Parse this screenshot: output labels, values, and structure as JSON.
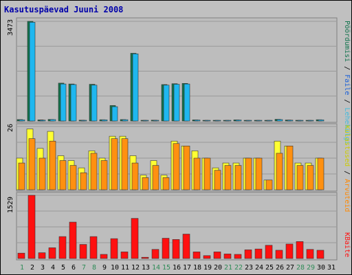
{
  "chart_data": [
    {
      "type": "bar",
      "title": "Kasutuspäevad Juuni 2008",
      "x": [
        "1",
        "2",
        "3",
        "4",
        "5",
        "6",
        "7",
        "8",
        "9",
        "10",
        "11",
        "12",
        "13",
        "14",
        "15",
        "16",
        "17",
        "18",
        "19",
        "20",
        "21",
        "22",
        "23",
        "24",
        "25",
        "26",
        "27",
        "28",
        "29",
        "30",
        "31"
      ],
      "weekend_days": [
        "1",
        "7",
        "8",
        "14",
        "15",
        "21",
        "22",
        "28",
        "29"
      ],
      "y_tick": "3473",
      "ylim": [
        0,
        3473
      ],
      "grid": true,
      "legend_placement": "right",
      "series": [
        {
          "name": "Pöördumisi",
          "color": "#11734d",
          "values": [
            50,
            3473,
            40,
            55,
            1320,
            1290,
            30,
            1280,
            45,
            540,
            50,
            2360,
            25,
            30,
            1270,
            1300,
            1310,
            40,
            20,
            20,
            15,
            40,
            20,
            25,
            20,
            60,
            35,
            25,
            20,
            45,
            0
          ]
        },
        {
          "name": "Faile",
          "color": "#1fb7ef",
          "values": [
            40,
            3440,
            30,
            50,
            1290,
            1270,
            25,
            1250,
            40,
            500,
            45,
            2340,
            20,
            25,
            1250,
            1280,
            1290,
            35,
            15,
            15,
            10,
            35,
            15,
            20,
            15,
            50,
            30,
            20,
            15,
            40,
            0
          ]
        }
      ]
    },
    {
      "type": "bar",
      "y_tick": "26",
      "ylim": [
        0,
        26
      ],
      "grid": true,
      "legend_placement": "right",
      "series": [
        {
          "name": "Külastused",
          "color": "#ffff33",
          "values": [
            13,
            25,
            17,
            24,
            14,
            12,
            9,
            16,
            13,
            22,
            22,
            14,
            6,
            12,
            6,
            20,
            18,
            16,
            13,
            9,
            11,
            11,
            13,
            13,
            4,
            20,
            18,
            11,
            11,
            13,
            0
          ]
        },
        {
          "name": "Arvuteid",
          "color": "#ff9010",
          "values": [
            11,
            21,
            13,
            20,
            12,
            10,
            7,
            15,
            12,
            21,
            21,
            11,
            5,
            10,
            5,
            19,
            18,
            13,
            13,
            8,
            10,
            10,
            13,
            13,
            4,
            15,
            18,
            10,
            10,
            13,
            0
          ]
        }
      ]
    },
    {
      "type": "bar",
      "y_tick": "1529",
      "ylim": [
        0,
        1529
      ],
      "grid": true,
      "legend_placement": "right",
      "series": [
        {
          "name": "KBaite",
          "color": "#ff1010",
          "values": [
            130,
            1529,
            140,
            260,
            530,
            880,
            340,
            530,
            100,
            480,
            160,
            970,
            30,
            220,
            490,
            460,
            590,
            160,
            70,
            160,
            110,
            100,
            210,
            230,
            320,
            200,
            350,
            410,
            220,
            200,
            0
          ]
        }
      ]
    }
  ]
}
